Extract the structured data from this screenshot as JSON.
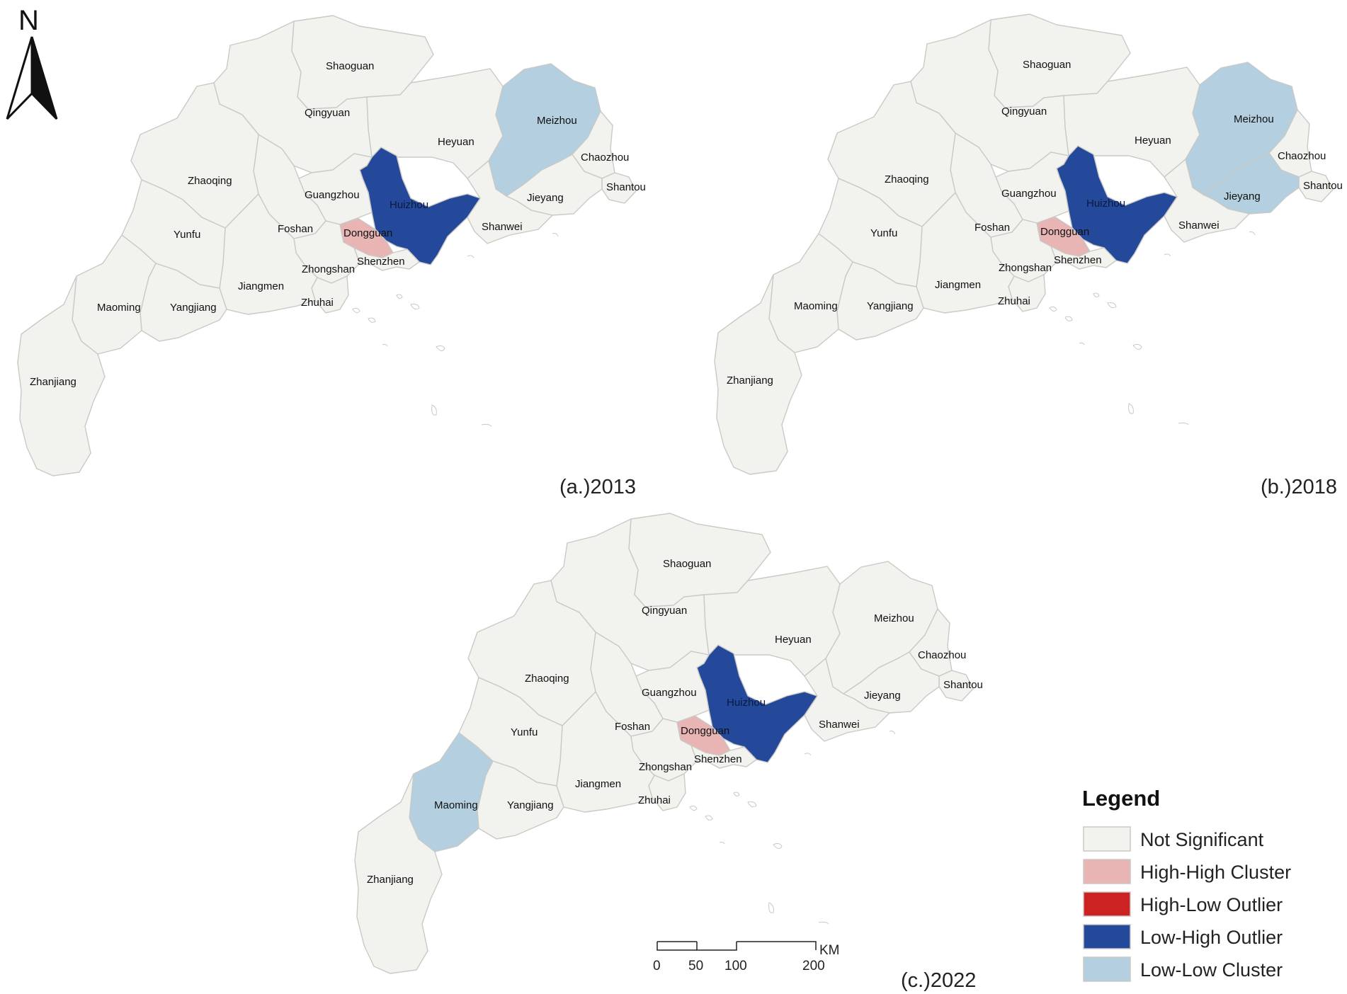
{
  "colors": {
    "not_significant": "#f2f2ee",
    "high_high": "#e8b4b4",
    "high_low": "#cc2222",
    "low_high": "#24489a",
    "low_low": "#b3cfe0",
    "border": "#c9c9c6"
  },
  "north_arrow": {
    "label": "N"
  },
  "panels": [
    {
      "id": "a",
      "caption": "(a.)2013",
      "cities": [
        {
          "name": "Shaoguan",
          "class": "not_significant"
        },
        {
          "name": "Qingyuan",
          "class": "not_significant"
        },
        {
          "name": "Heyuan",
          "class": "not_significant"
        },
        {
          "name": "Meizhou",
          "class": "low_low"
        },
        {
          "name": "Chaozhou",
          "class": "not_significant"
        },
        {
          "name": "Shantou",
          "class": "not_significant"
        },
        {
          "name": "Jieyang",
          "class": "not_significant"
        },
        {
          "name": "Shanwei",
          "class": "not_significant"
        },
        {
          "name": "Huizhou",
          "class": "low_high"
        },
        {
          "name": "Dongguan",
          "class": "high_high"
        },
        {
          "name": "Shenzhen",
          "class": "not_significant"
        },
        {
          "name": "Guangzhou",
          "class": "not_significant"
        },
        {
          "name": "Foshan",
          "class": "not_significant"
        },
        {
          "name": "Zhongshan",
          "class": "not_significant"
        },
        {
          "name": "Zhuhai",
          "class": "not_significant"
        },
        {
          "name": "Jiangmen",
          "class": "not_significant"
        },
        {
          "name": "Zhaoqing",
          "class": "not_significant"
        },
        {
          "name": "Yunfu",
          "class": "not_significant"
        },
        {
          "name": "Yangjiang",
          "class": "not_significant"
        },
        {
          "name": "Maoming",
          "class": "not_significant"
        },
        {
          "name": "Zhanjiang",
          "class": "not_significant"
        }
      ]
    },
    {
      "id": "b",
      "caption": "(b.)2018",
      "cities": [
        {
          "name": "Shaoguan",
          "class": "not_significant"
        },
        {
          "name": "Qingyuan",
          "class": "not_significant"
        },
        {
          "name": "Heyuan",
          "class": "not_significant"
        },
        {
          "name": "Meizhou",
          "class": "low_low"
        },
        {
          "name": "Chaozhou",
          "class": "not_significant"
        },
        {
          "name": "Shantou",
          "class": "not_significant"
        },
        {
          "name": "Jieyang",
          "class": "low_low"
        },
        {
          "name": "Shanwei",
          "class": "not_significant"
        },
        {
          "name": "Huizhou",
          "class": "low_high"
        },
        {
          "name": "Dongguan",
          "class": "high_high"
        },
        {
          "name": "Shenzhen",
          "class": "not_significant"
        },
        {
          "name": "Guangzhou",
          "class": "not_significant"
        },
        {
          "name": "Foshan",
          "class": "not_significant"
        },
        {
          "name": "Zhongshan",
          "class": "not_significant"
        },
        {
          "name": "Zhuhai",
          "class": "not_significant"
        },
        {
          "name": "Jiangmen",
          "class": "not_significant"
        },
        {
          "name": "Zhaoqing",
          "class": "not_significant"
        },
        {
          "name": "Yunfu",
          "class": "not_significant"
        },
        {
          "name": "Yangjiang",
          "class": "not_significant"
        },
        {
          "name": "Maoming",
          "class": "not_significant"
        },
        {
          "name": "Zhanjiang",
          "class": "not_significant"
        }
      ]
    },
    {
      "id": "c",
      "caption": "(c.)2022",
      "cities": [
        {
          "name": "Shaoguan",
          "class": "not_significant"
        },
        {
          "name": "Qingyuan",
          "class": "not_significant"
        },
        {
          "name": "Heyuan",
          "class": "not_significant"
        },
        {
          "name": "Meizhou",
          "class": "not_significant"
        },
        {
          "name": "Chaozhou",
          "class": "not_significant"
        },
        {
          "name": "Shantou",
          "class": "not_significant"
        },
        {
          "name": "Jieyang",
          "class": "not_significant"
        },
        {
          "name": "Shanwei",
          "class": "not_significant"
        },
        {
          "name": "Huizhou",
          "class": "low_high"
        },
        {
          "name": "Dongguan",
          "class": "high_high"
        },
        {
          "name": "Shenzhen",
          "class": "not_significant"
        },
        {
          "name": "Guangzhou",
          "class": "not_significant"
        },
        {
          "name": "Foshan",
          "class": "not_significant"
        },
        {
          "name": "Zhongshan",
          "class": "not_significant"
        },
        {
          "name": "Zhuhai",
          "class": "not_significant"
        },
        {
          "name": "Jiangmen",
          "class": "not_significant"
        },
        {
          "name": "Zhaoqing",
          "class": "not_significant"
        },
        {
          "name": "Yunfu",
          "class": "not_significant"
        },
        {
          "name": "Yangjiang",
          "class": "not_significant"
        },
        {
          "name": "Maoming",
          "class": "low_low"
        },
        {
          "name": "Zhanjiang",
          "class": "not_significant"
        }
      ]
    }
  ],
  "legend": {
    "title": "Legend",
    "items": [
      {
        "key": "not_significant",
        "label": "Not Significant"
      },
      {
        "key": "high_high",
        "label": "High-High Cluster"
      },
      {
        "key": "high_low",
        "label": "High-Low Outlier"
      },
      {
        "key": "low_high",
        "label": "Low-High Outlier"
      },
      {
        "key": "low_low",
        "label": "Low-Low Cluster"
      }
    ]
  },
  "scale_bar": {
    "unit": "KM",
    "ticks": [
      "0",
      "50",
      "100",
      "200"
    ]
  }
}
